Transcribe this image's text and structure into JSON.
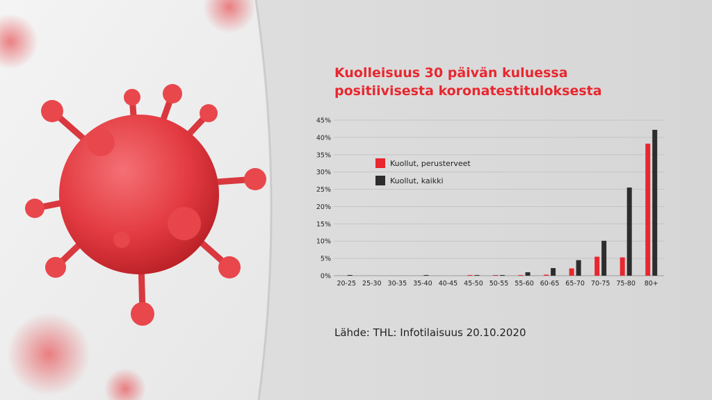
{
  "title_lines": [
    "Kuolleisuus 30 päivän kuluessa",
    "positiivisesta koronatestituloksesta"
  ],
  "source": "Lähde: THL: Infotilaisuus 20.10.2020",
  "colors": {
    "accent": "#e8272f",
    "series_red": "#e8272f",
    "series_dark": "#2d2d2d",
    "virus": "#e33a3f"
  },
  "chart_data": {
    "type": "bar",
    "title": "Kuolleisuus 30 päivän kuluessa positiivisesta koronatestituloksesta",
    "categories": [
      "20-25",
      "25-30",
      "30-35",
      "35-40",
      "40-45",
      "45-50",
      "50-55",
      "55-60",
      "60-65",
      "65-70",
      "70-75",
      "75-80",
      "80+"
    ],
    "series": [
      {
        "name": "Kuollut, perusterveet",
        "color": "#e8272f",
        "values": [
          0,
          0,
          0,
          0,
          0,
          0.2,
          0.2,
          0.2,
          0.3,
          2.1,
          5.5,
          5.3,
          38.2
        ]
      },
      {
        "name": "Kuollut, kaikki",
        "color": "#2d2d2d",
        "values": [
          0.2,
          0,
          0,
          0.2,
          0,
          0.2,
          0.2,
          1.0,
          2.2,
          4.5,
          10.1,
          25.5,
          42.2
        ]
      }
    ],
    "ylim": [
      0,
      45
    ],
    "yticks": [
      "0%",
      "5%",
      "10%",
      "15%",
      "20%",
      "25%",
      "30%",
      "35%",
      "40%",
      "45%"
    ],
    "grid": true,
    "legend": "top-left"
  }
}
